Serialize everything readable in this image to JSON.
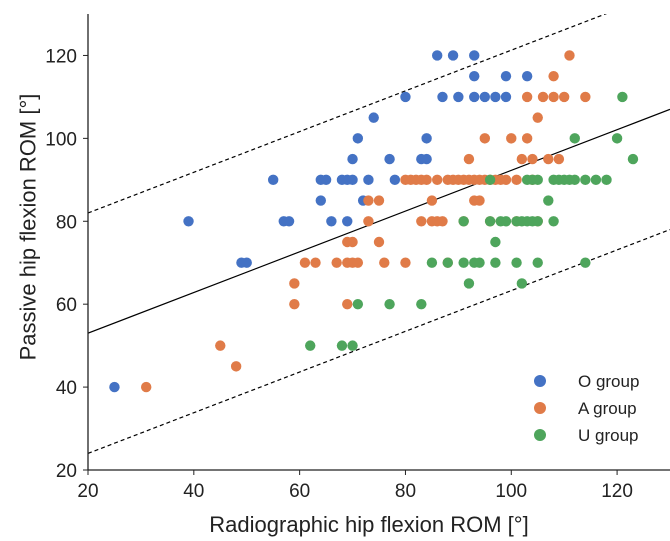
{
  "chart_data": {
    "type": "scatter",
    "title": "",
    "xlabel": "Radiographic hip flexion ROM [°]",
    "ylabel": "Passive hip flexion ROM [°]",
    "xlim": [
      20,
      130
    ],
    "ylim": [
      20,
      130
    ],
    "xticks": [
      20,
      40,
      60,
      80,
      100,
      120
    ],
    "yticks": [
      20,
      40,
      60,
      80,
      100,
      120
    ],
    "grid": false,
    "legend": "bottom-right",
    "series": [
      {
        "name": "O group",
        "color": "#4472c4",
        "points": [
          [
            25,
            40
          ],
          [
            39,
            80
          ],
          [
            49,
            70
          ],
          [
            50,
            70
          ],
          [
            55,
            90
          ],
          [
            57,
            80
          ],
          [
            58,
            80
          ],
          [
            64,
            85
          ],
          [
            64,
            90
          ],
          [
            65,
            90
          ],
          [
            66,
            80
          ],
          [
            68,
            90
          ],
          [
            69,
            80
          ],
          [
            69,
            90
          ],
          [
            70,
            95
          ],
          [
            70,
            90
          ],
          [
            71,
            100
          ],
          [
            72,
            85
          ],
          [
            73,
            90
          ],
          [
            74,
            105
          ],
          [
            77,
            95
          ],
          [
            78,
            90
          ],
          [
            80,
            110
          ],
          [
            83,
            95
          ],
          [
            84,
            100
          ],
          [
            84,
            95
          ],
          [
            86,
            120
          ],
          [
            87,
            110
          ],
          [
            89,
            120
          ],
          [
            90,
            110
          ],
          [
            93,
            120
          ],
          [
            93,
            115
          ],
          [
            93,
            110
          ],
          [
            95,
            110
          ],
          [
            97,
            110
          ],
          [
            99,
            115
          ],
          [
            99,
            110
          ],
          [
            103,
            115
          ]
        ]
      },
      {
        "name": "A group",
        "color": "#e07b48",
        "points": [
          [
            31,
            40
          ],
          [
            45,
            50
          ],
          [
            48,
            45
          ],
          [
            59,
            60
          ],
          [
            59,
            65
          ],
          [
            61,
            70
          ],
          [
            63,
            70
          ],
          [
            67,
            70
          ],
          [
            69,
            75
          ],
          [
            69,
            70
          ],
          [
            69,
            60
          ],
          [
            70,
            75
          ],
          [
            70,
            70
          ],
          [
            71,
            70
          ],
          [
            73,
            80
          ],
          [
            73,
            85
          ],
          [
            75,
            75
          ],
          [
            75,
            85
          ],
          [
            76,
            70
          ],
          [
            80,
            70
          ],
          [
            80,
            90
          ],
          [
            81,
            90
          ],
          [
            82,
            90
          ],
          [
            83,
            80
          ],
          [
            83,
            90
          ],
          [
            84,
            90
          ],
          [
            85,
            85
          ],
          [
            85,
            80
          ],
          [
            86,
            80
          ],
          [
            86,
            90
          ],
          [
            87,
            80
          ],
          [
            88,
            90
          ],
          [
            88,
            70
          ],
          [
            89,
            90
          ],
          [
            90,
            90
          ],
          [
            91,
            80
          ],
          [
            91,
            90
          ],
          [
            92,
            90
          ],
          [
            92,
            95
          ],
          [
            93,
            85
          ],
          [
            93,
            90
          ],
          [
            94,
            85
          ],
          [
            94,
            90
          ],
          [
            95,
            90
          ],
          [
            95,
            100
          ],
          [
            96,
            80
          ],
          [
            96,
            90
          ],
          [
            97,
            90
          ],
          [
            98,
            90
          ],
          [
            99,
            90
          ],
          [
            100,
            100
          ],
          [
            101,
            80
          ],
          [
            101,
            90
          ],
          [
            102,
            95
          ],
          [
            103,
            110
          ],
          [
            103,
            100
          ],
          [
            104,
            95
          ],
          [
            104,
            90
          ],
          [
            105,
            105
          ],
          [
            105,
            80
          ],
          [
            106,
            110
          ],
          [
            107,
            95
          ],
          [
            108,
            115
          ],
          [
            108,
            110
          ],
          [
            109,
            95
          ],
          [
            110,
            110
          ],
          [
            111,
            120
          ],
          [
            114,
            110
          ]
        ]
      },
      {
        "name": "U group",
        "color": "#4ea55c",
        "points": [
          [
            62,
            50
          ],
          [
            68,
            50
          ],
          [
            70,
            50
          ],
          [
            71,
            60
          ],
          [
            77,
            60
          ],
          [
            83,
            60
          ],
          [
            85,
            70
          ],
          [
            88,
            70
          ],
          [
            91,
            70
          ],
          [
            91,
            80
          ],
          [
            92,
            65
          ],
          [
            93,
            70
          ],
          [
            94,
            70
          ],
          [
            96,
            80
          ],
          [
            96,
            90
          ],
          [
            97,
            75
          ],
          [
            97,
            70
          ],
          [
            98,
            80
          ],
          [
            99,
            80
          ],
          [
            101,
            80
          ],
          [
            101,
            70
          ],
          [
            102,
            65
          ],
          [
            102,
            80
          ],
          [
            103,
            90
          ],
          [
            103,
            80
          ],
          [
            104,
            90
          ],
          [
            104,
            80
          ],
          [
            105,
            90
          ],
          [
            105,
            80
          ],
          [
            105,
            70
          ],
          [
            107,
            85
          ],
          [
            108,
            90
          ],
          [
            108,
            80
          ],
          [
            109,
            90
          ],
          [
            110,
            90
          ],
          [
            111,
            90
          ],
          [
            112,
            100
          ],
          [
            112,
            90
          ],
          [
            114,
            90
          ],
          [
            114,
            70
          ],
          [
            116,
            90
          ],
          [
            118,
            90
          ],
          [
            120,
            100
          ],
          [
            121,
            110
          ],
          [
            123,
            95
          ]
        ]
      }
    ],
    "reference_lines": [
      {
        "style": "solid",
        "color": "#000000",
        "points": [
          [
            20,
            53
          ],
          [
            130,
            107
          ]
        ]
      },
      {
        "style": "dashed",
        "color": "#000000",
        "points": [
          [
            20,
            82
          ],
          [
            130,
            136
          ]
        ]
      },
      {
        "style": "dashed",
        "color": "#000000",
        "points": [
          [
            20,
            24
          ],
          [
            130,
            78
          ]
        ]
      }
    ]
  }
}
